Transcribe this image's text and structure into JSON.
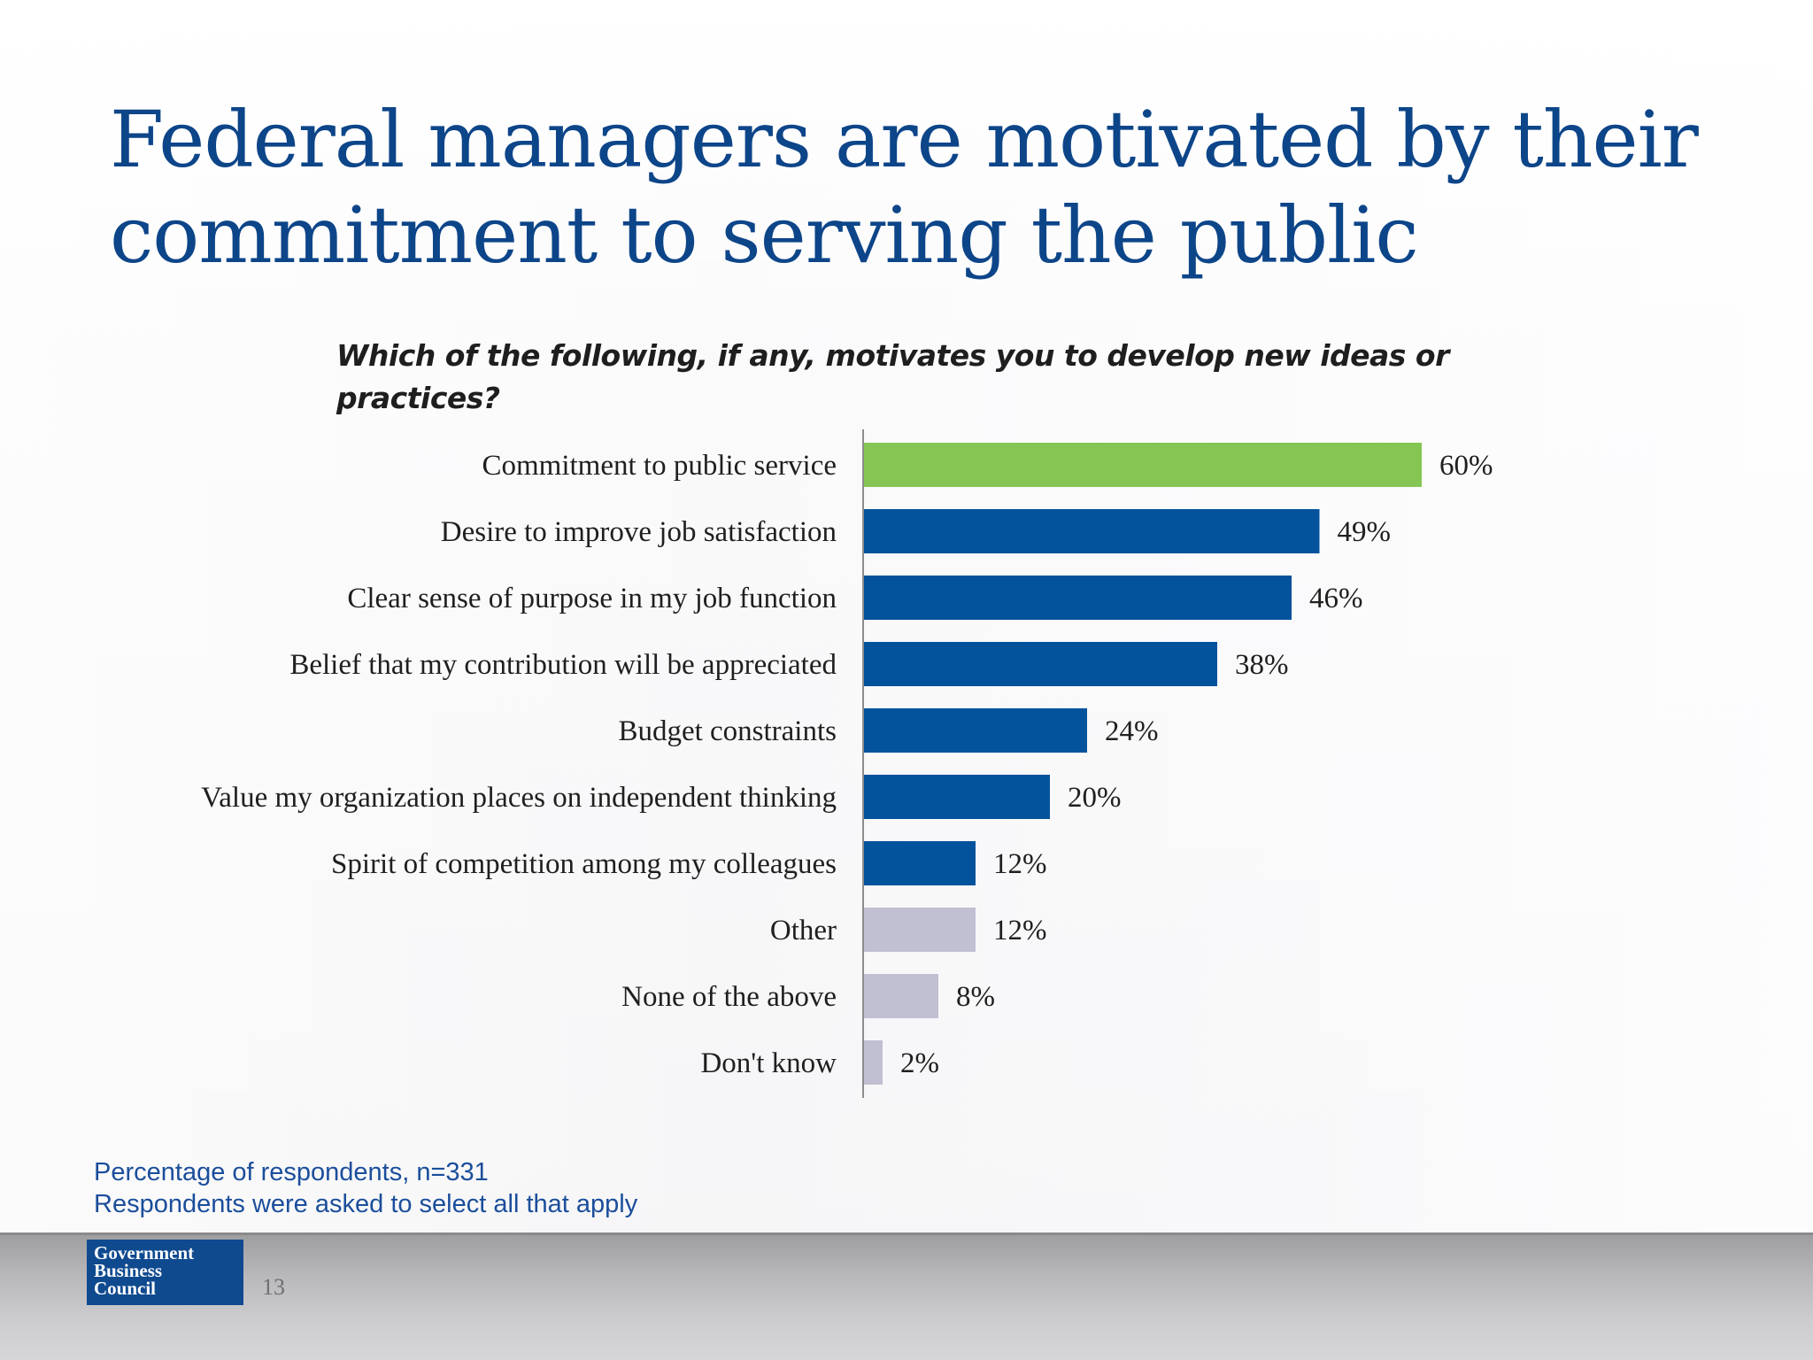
{
  "slide": {
    "title_lines": [
      "Federal managers are motivated by their",
      "commitment to serving the public"
    ],
    "question": "Which of the following, if any, motivates you to develop new ideas or practices?",
    "notes": [
      "Percentage of respondents, n=331",
      "Respondents were asked to select all that apply"
    ],
    "logo_lines": [
      "Government",
      "Business",
      "Council"
    ],
    "page_number": "13"
  },
  "chart_data": {
    "type": "bar",
    "orientation": "horizontal",
    "title": "Which of the following, if any, motivates you to develop new ideas or practices?",
    "xlabel": "",
    "ylabel": "",
    "xlim": [
      0,
      100
    ],
    "grid": false,
    "legend": "none",
    "categories": [
      "Commitment to public service",
      "Desire to improve job satisfaction",
      "Clear sense of purpose in my job function",
      "Belief that my contribution will be appreciated",
      "Budget constraints",
      "Value my organization places on independent thinking",
      "Spirit of competition among my colleagues",
      "Other",
      "None of the above",
      "Don't know"
    ],
    "values": [
      60,
      49,
      46,
      38,
      24,
      20,
      12,
      12,
      8,
      2
    ],
    "value_labels": [
      "60%",
      "49%",
      "46%",
      "38%",
      "24%",
      "20%",
      "12%",
      "12%",
      "8%",
      "2%"
    ],
    "bar_colors": [
      "#84c553",
      "#03529c",
      "#03529c",
      "#03529c",
      "#03529c",
      "#03529c",
      "#03529c",
      "#c1bfd2",
      "#c1bfd2",
      "#c1bfd2"
    ],
    "axis_color": "#8c8c8c"
  }
}
